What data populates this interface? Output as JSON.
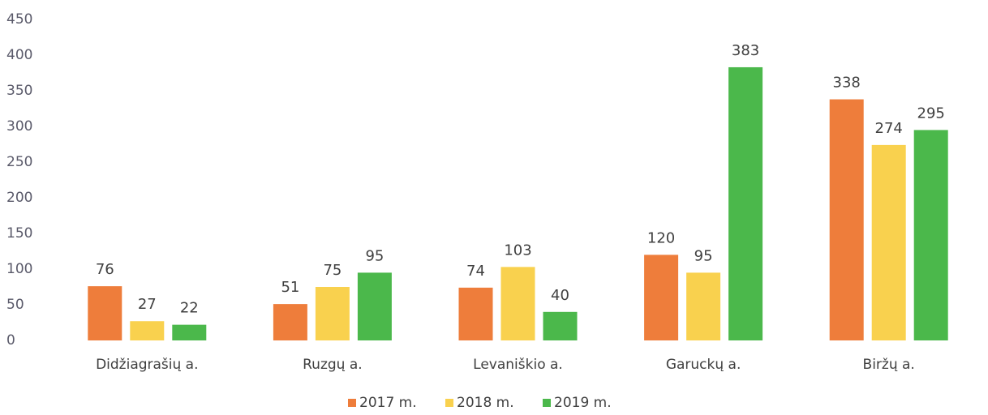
{
  "chart_data": {
    "type": "bar",
    "categories": [
      "Didžiagrašių a.",
      "Ruzgų a.",
      "Levaniškio a.",
      "Garuckų a.",
      "Biržų a."
    ],
    "series": [
      {
        "name": "2017 m.",
        "color": "#ee7d3b",
        "values": [
          76,
          51,
          74,
          120,
          338
        ]
      },
      {
        "name": "2018 m.",
        "color": "#f9d14e",
        "values": [
          27,
          75,
          103,
          95,
          274
        ]
      },
      {
        "name": "2019 m.",
        "color": "#4bb84b",
        "values": [
          22,
          95,
          40,
          383,
          295
        ]
      }
    ],
    "ylim": [
      0,
      450
    ],
    "yticks": [
      0,
      50,
      100,
      150,
      200,
      250,
      300,
      350,
      400,
      450
    ],
    "grid": false,
    "legend": "bottom"
  }
}
